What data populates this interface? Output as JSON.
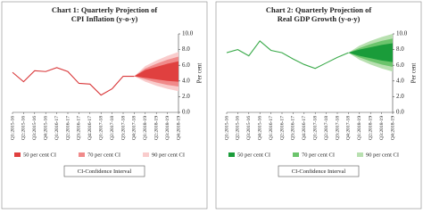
{
  "chart_data": [
    {
      "type": "fan",
      "title": [
        "Chart 1: Quarterly Projection of",
        "CPI Inflation (y-o-y)"
      ],
      "ylabel": "Per cent",
      "categories": [
        "Q1:2015-16",
        "Q2:2015-16",
        "Q3:2015-16",
        "Q4:2015-16",
        "Q1:2016-17",
        "Q2:2016-17",
        "Q3:2016-17",
        "Q4:2016-17",
        "Q1:2017-18",
        "Q2:2017-18",
        "Q3:2017-18",
        "Q4:2017-18",
        "Q1:2018-19",
        "Q2:2018-19",
        "Q3:2018-19",
        "Q4:2018-19"
      ],
      "ylim": [
        0,
        10
      ],
      "yticks": [
        {
          "value": 0,
          "label": "0.0"
        },
        {
          "value": 2,
          "label": "2.0"
        },
        {
          "value": 4,
          "label": "4.0"
        },
        {
          "value": 6,
          "label": "6.0"
        },
        {
          "value": 8,
          "label": "8.0"
        },
        {
          "value": 10,
          "label": "10.0"
        }
      ],
      "line_color": "#d9383a",
      "values": [
        5.1,
        3.9,
        5.3,
        5.2,
        5.7,
        5.2,
        3.7,
        3.6,
        2.2,
        3.0,
        4.6,
        4.6,
        null,
        null,
        null,
        null
      ],
      "bands": [
        {
          "name": "50 per cent CI",
          "color": "#e0403f",
          "low": [
            null,
            null,
            null,
            null,
            null,
            null,
            null,
            null,
            null,
            null,
            null,
            4.6,
            4.4,
            4.2,
            4.0,
            3.9
          ],
          "high": [
            null,
            null,
            null,
            null,
            null,
            null,
            null,
            null,
            null,
            null,
            null,
            4.6,
            5.4,
            5.8,
            6.2,
            6.5
          ]
        },
        {
          "name": "70 per cent CI",
          "color": "#f08a8a",
          "low": [
            null,
            null,
            null,
            null,
            null,
            null,
            null,
            null,
            null,
            null,
            null,
            4.6,
            4.2,
            3.8,
            3.5,
            3.3
          ],
          "high": [
            null,
            null,
            null,
            null,
            null,
            null,
            null,
            null,
            null,
            null,
            null,
            4.6,
            5.6,
            6.2,
            6.7,
            7.1
          ]
        },
        {
          "name": "90 per cent CI",
          "color": "#f9cccc",
          "low": [
            null,
            null,
            null,
            null,
            null,
            null,
            null,
            null,
            null,
            null,
            null,
            4.6,
            3.9,
            3.4,
            3.0,
            2.7
          ],
          "high": [
            null,
            null,
            null,
            null,
            null,
            null,
            null,
            null,
            null,
            null,
            null,
            4.6,
            5.9,
            6.6,
            7.2,
            7.7
          ]
        }
      ],
      "note": "CI-Confidence Interval"
    },
    {
      "type": "fan",
      "title": [
        "Chart 2: Quarterly Projection of",
        "Real GDP Growth (y-o-y)"
      ],
      "ylabel": "Per cent",
      "categories": [
        "Q1:2015-16",
        "Q2:2015-16",
        "Q3:2015-16",
        "Q4:2015-16",
        "Q1:2016-17",
        "Q2:2016-17",
        "Q3:2016-17",
        "Q4:2016-17",
        "Q1:2017-18",
        "Q2:2017-18",
        "Q3:2017-18",
        "Q4:2017-18",
        "Q1:2018-19",
        "Q2:2018-19",
        "Q3:2018-19",
        "Q4:2018-19"
      ],
      "ylim": [
        0,
        10
      ],
      "yticks": [
        {
          "value": 0,
          "label": "0.0"
        },
        {
          "value": 2,
          "label": "2.0"
        },
        {
          "value": 4,
          "label": "4.0"
        },
        {
          "value": 6,
          "label": "6.0"
        },
        {
          "value": 8,
          "label": "8.0"
        },
        {
          "value": 10,
          "label": "10.0"
        }
      ],
      "line_color": "#3aaa4a",
      "values": [
        7.6,
        8.0,
        7.2,
        9.1,
        7.9,
        7.6,
        6.8,
        6.1,
        5.6,
        6.3,
        7.0,
        7.6,
        null,
        null,
        null,
        null
      ],
      "bands": [
        {
          "name": "50 per cent CI",
          "color": "#1a9c3a",
          "low": [
            null,
            null,
            null,
            null,
            null,
            null,
            null,
            null,
            null,
            null,
            null,
            7.6,
            7.2,
            6.9,
            6.6,
            6.4
          ],
          "high": [
            null,
            null,
            null,
            null,
            null,
            null,
            null,
            null,
            null,
            null,
            null,
            7.6,
            8.0,
            8.3,
            8.6,
            8.8
          ]
        },
        {
          "name": "70 per cent CI",
          "color": "#6cc46c",
          "low": [
            null,
            null,
            null,
            null,
            null,
            null,
            null,
            null,
            null,
            null,
            null,
            7.6,
            7.0,
            6.5,
            6.1,
            5.8
          ],
          "high": [
            null,
            null,
            null,
            null,
            null,
            null,
            null,
            null,
            null,
            null,
            null,
            7.6,
            8.2,
            8.7,
            9.1,
            9.4
          ]
        },
        {
          "name": "90 per cent CI",
          "color": "#b8e0b0",
          "low": [
            null,
            null,
            null,
            null,
            null,
            null,
            null,
            null,
            null,
            null,
            null,
            7.6,
            6.7,
            6.1,
            5.6,
            5.2
          ],
          "high": [
            null,
            null,
            null,
            null,
            null,
            null,
            null,
            null,
            null,
            null,
            null,
            7.6,
            8.5,
            9.1,
            9.6,
            10.0
          ]
        }
      ],
      "note": "CI-Confidence Interval"
    }
  ]
}
